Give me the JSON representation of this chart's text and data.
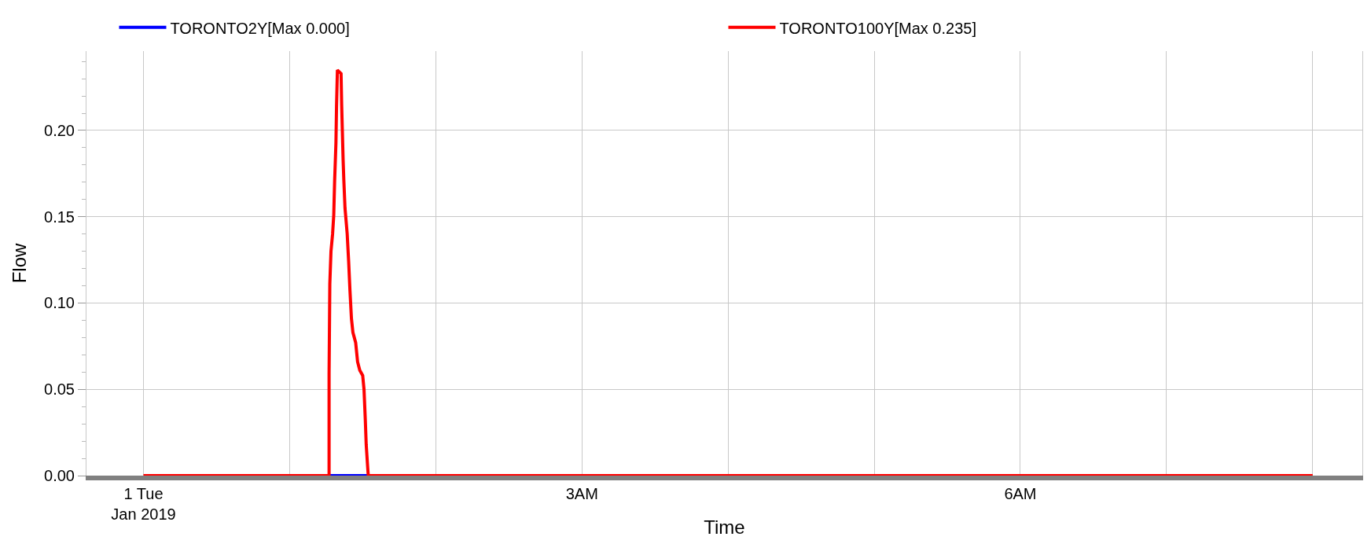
{
  "chart_data": {
    "type": "line",
    "xlabel": "Time",
    "ylabel": "Flow",
    "xlim": [
      -0.39,
      8.34
    ],
    "ylim": [
      0,
      0.246
    ],
    "xticks": [
      {
        "value": 0,
        "label": "1 Tue\nJan 2019"
      },
      {
        "value": 1,
        "label": null
      },
      {
        "value": 2,
        "label": null
      },
      {
        "value": 3,
        "label": "3AM"
      },
      {
        "value": 4,
        "label": null
      },
      {
        "value": 5,
        "label": null
      },
      {
        "value": 6,
        "label": "6AM"
      },
      {
        "value": 7,
        "label": null
      },
      {
        "value": 8,
        "label": null
      }
    ],
    "yticks": [
      {
        "value": 0,
        "label": "0.00"
      },
      {
        "value": 0.05,
        "label": "0.05"
      },
      {
        "value": 0.1,
        "label": "0.10"
      },
      {
        "value": 0.15,
        "label": "0.15"
      },
      {
        "value": 0.2,
        "label": "0.20"
      }
    ],
    "grid": true,
    "legend": "top",
    "marker": "none",
    "line_style": "solid",
    "series": [
      {
        "name": "TORONTO2Y[Max 0.000]",
        "color": "#0000ff",
        "x": [
          1.27,
          1.4,
          1.538
        ],
        "values": [
          0,
          0,
          0
        ]
      },
      {
        "name": "TORONTO100Y[Max 0.235]",
        "color": "#ff0000",
        "x": [
          0,
          1.27,
          1.27,
          1.275,
          1.283,
          1.294,
          1.302,
          1.308,
          1.317,
          1.321,
          1.327,
          1.352,
          1.356,
          1.361,
          1.366,
          1.371,
          1.379,
          1.394,
          1.404,
          1.413,
          1.423,
          1.433,
          1.452,
          1.465,
          1.48,
          1.5,
          1.509,
          1.518,
          1.524,
          1.534,
          1.538,
          8
        ],
        "values": [
          0,
          0,
          0.059,
          0.111,
          0.13,
          0.14,
          0.151,
          0.171,
          0.193,
          0.214,
          0.235,
          0.233,
          0.215,
          0.199,
          0.183,
          0.171,
          0.155,
          0.14,
          0.124,
          0.107,
          0.091,
          0.083,
          0.077,
          0.066,
          0.061,
          0.058,
          0.05,
          0.032,
          0.018,
          0.005,
          0,
          0
        ]
      }
    ]
  }
}
